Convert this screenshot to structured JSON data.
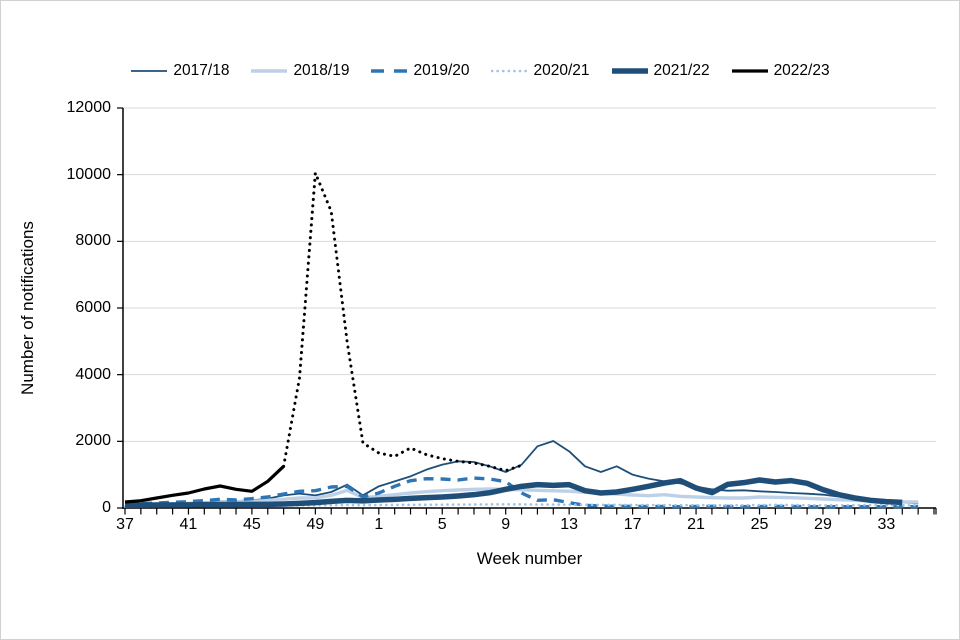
{
  "chart_data": {
    "type": "line",
    "xlabel": "Week number",
    "ylabel": "Number of notifications",
    "ylim": [
      0,
      12000
    ],
    "y_ticks": [
      0,
      2000,
      4000,
      6000,
      8000,
      10000,
      12000
    ],
    "x_tick_labels": [
      "37",
      "41",
      "45",
      "49",
      "1",
      "5",
      "9",
      "13",
      "17",
      "21",
      "25",
      "29",
      "33"
    ],
    "grid": "horizontal",
    "gridline_color": "#d9d9d9",
    "axis_color": "#000000",
    "legend_position": "top",
    "weeks": [
      37,
      38,
      39,
      40,
      41,
      42,
      43,
      44,
      45,
      46,
      47,
      48,
      49,
      50,
      51,
      52,
      1,
      2,
      3,
      4,
      5,
      6,
      7,
      8,
      9,
      10,
      11,
      12,
      13,
      14,
      15,
      16,
      17,
      18,
      19,
      20,
      21,
      22,
      23,
      24,
      25,
      26,
      27,
      28,
      29,
      30,
      31,
      32,
      33,
      34,
      35,
      36
    ],
    "series": [
      {
        "name": "2017/18",
        "color": "#1f4e79",
        "style": "solid",
        "weight": "thin",
        "values": [
          100,
          110,
          120,
          140,
          150,
          170,
          200,
          210,
          230,
          280,
          380,
          430,
          380,
          480,
          700,
          380,
          650,
          800,
          950,
          1150,
          1300,
          1400,
          1380,
          1250,
          1080,
          1300,
          1850,
          2010,
          1700,
          1250,
          1080,
          1250,
          1000,
          880,
          800,
          740,
          640,
          560,
          520,
          530,
          500,
          480,
          450,
          430,
          400,
          340,
          290,
          250,
          210,
          170,
          140,
          null
        ]
      },
      {
        "name": "2018/19",
        "color": "#bcd1e8",
        "style": "solid",
        "weight": "medium",
        "values": [
          90,
          100,
          110,
          120,
          140,
          160,
          180,
          190,
          200,
          230,
          260,
          300,
          300,
          380,
          530,
          310,
          350,
          400,
          450,
          490,
          520,
          540,
          560,
          570,
          560,
          545,
          530,
          515,
          505,
          470,
          440,
          420,
          390,
          370,
          400,
          350,
          330,
          310,
          300,
          300,
          330,
          320,
          310,
          290,
          270,
          250,
          230,
          210,
          190,
          180,
          180,
          null
        ]
      },
      {
        "name": "2019/20",
        "color": "#2e75b6",
        "style": "dashed",
        "weight": "medium",
        "values": [
          120,
          130,
          150,
          170,
          190,
          220,
          260,
          240,
          280,
          330,
          420,
          500,
          520,
          630,
          650,
          330,
          450,
          650,
          820,
          880,
          870,
          840,
          900,
          870,
          790,
          450,
          230,
          250,
          160,
          80,
          60,
          50,
          50,
          45,
          45,
          40,
          45,
          50,
          45,
          40,
          45,
          50,
          45,
          40,
          40,
          40,
          40,
          40,
          40,
          40,
          40,
          null
        ]
      },
      {
        "name": "2020/21",
        "color": "#9dc3e6",
        "style": "dotted",
        "weight": "dots",
        "values": [
          40,
          45,
          50,
          55,
          60,
          60,
          65,
          65,
          70,
          70,
          75,
          80,
          80,
          85,
          90,
          85,
          90,
          95,
          95,
          100,
          100,
          105,
          105,
          110,
          110,
          110,
          105,
          105,
          100,
          100,
          95,
          95,
          90,
          90,
          90,
          85,
          85,
          85,
          80,
          85,
          90,
          95,
          90,
          85,
          80,
          80,
          85,
          90,
          85,
          80,
          85,
          null
        ]
      },
      {
        "name": "2021/22",
        "color": "#1f4e79",
        "style": "solid",
        "weight": "thick",
        "values": [
          80,
          85,
          90,
          90,
          95,
          100,
          105,
          105,
          110,
          110,
          120,
          140,
          160,
          200,
          230,
          215,
          240,
          260,
          290,
          310,
          330,
          360,
          400,
          460,
          560,
          650,
          700,
          680,
          700,
          520,
          450,
          480,
          560,
          650,
          750,
          820,
          600,
          460,
          710,
          760,
          840,
          780,
          820,
          740,
          550,
          400,
          300,
          230,
          190,
          170,
          null,
          null
        ]
      },
      {
        "name": "2022/23",
        "color": "#000000",
        "style": "solid",
        "weight": "black",
        "dotted_from_index": 10,
        "values": [
          180,
          220,
          300,
          380,
          450,
          570,
          660,
          560,
          500,
          800,
          1250,
          3900,
          10050,
          8900,
          5000,
          1950,
          1650,
          1550,
          1800,
          1600,
          1480,
          1400,
          1350,
          1250,
          1120,
          1280,
          null,
          null,
          null,
          null,
          null,
          null,
          null,
          null,
          null,
          null,
          null,
          null,
          null,
          null,
          null,
          null,
          null,
          null,
          null,
          null,
          null,
          null,
          null,
          null,
          null,
          null
        ]
      }
    ]
  }
}
